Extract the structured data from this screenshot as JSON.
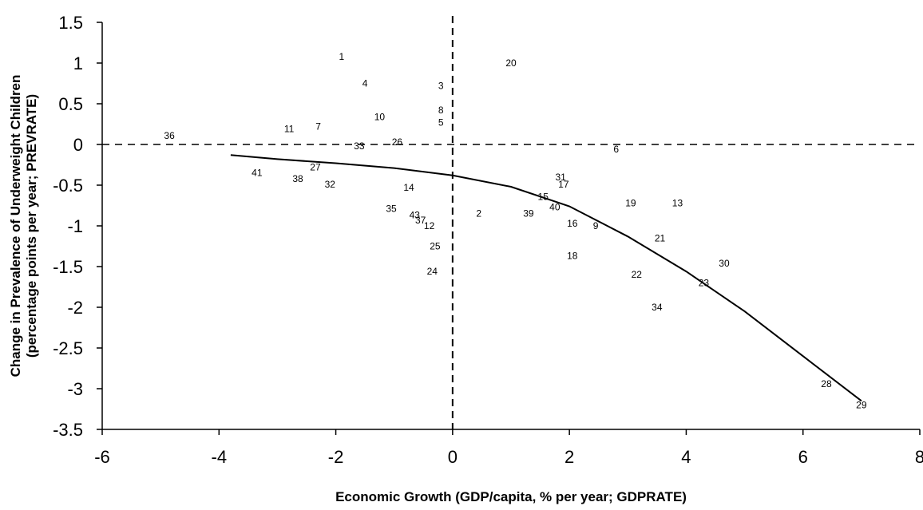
{
  "chart_data": {
    "type": "scatter",
    "title": "",
    "xlabel": "Economic Growth (GDP/capita, % per year; GDPRATE)",
    "ylabel": "Change in Prevalence of Underweight Children",
    "ylabel2": "(percentage points per year; PREVRATE)",
    "xlim": [
      -6,
      8
    ],
    "ylim": [
      -3.5,
      1.5
    ],
    "x_ticks": [
      -6,
      -4,
      -2,
      0,
      2,
      4,
      6,
      8
    ],
    "x_tick_labels": [
      "-6",
      "-4",
      "-2",
      "0",
      "2",
      "4",
      "6",
      "8"
    ],
    "y_ticks": [
      1.5,
      1,
      0.5,
      0,
      -0.5,
      -1,
      -1.5,
      -2,
      -2.5,
      -3,
      -3.5
    ],
    "y_tick_labels": [
      "1.5",
      "1",
      "0.5",
      "0",
      "-0.5",
      "-1",
      "-1.5",
      "-2",
      "-2.5",
      "-3",
      "-3.5"
    ],
    "grid": false,
    "reference_lines": {
      "x": 0,
      "y": 0,
      "style": "dashed"
    },
    "points": [
      {
        "label": "1",
        "x": -1.9,
        "y": 1.08
      },
      {
        "label": "4",
        "x": -1.5,
        "y": 0.75
      },
      {
        "label": "3",
        "x": -0.2,
        "y": 0.72
      },
      {
        "label": "20",
        "x": 1.0,
        "y": 1.0
      },
      {
        "label": "10",
        "x": -1.25,
        "y": 0.34
      },
      {
        "label": "8",
        "x": -0.2,
        "y": 0.42
      },
      {
        "label": "5",
        "x": -0.2,
        "y": 0.27
      },
      {
        "label": "11",
        "x": -2.8,
        "y": 0.19
      },
      {
        "label": "7",
        "x": -2.3,
        "y": 0.22
      },
      {
        "label": "36",
        "x": -4.85,
        "y": 0.11
      },
      {
        "label": "33",
        "x": -1.6,
        "y": -0.02
      },
      {
        "label": "26",
        "x": -0.95,
        "y": 0.03
      },
      {
        "label": "6",
        "x": 2.8,
        "y": -0.06
      },
      {
        "label": "41",
        "x": -3.35,
        "y": -0.35
      },
      {
        "label": "38",
        "x": -2.65,
        "y": -0.42
      },
      {
        "label": "27",
        "x": -2.35,
        "y": -0.28
      },
      {
        "label": "32",
        "x": -2.1,
        "y": -0.49
      },
      {
        "label": "14",
        "x": -0.75,
        "y": -0.53
      },
      {
        "label": "31",
        "x": 1.85,
        "y": -0.4
      },
      {
        "label": "17",
        "x": 1.9,
        "y": -0.49
      },
      {
        "label": "15",
        "x": 1.55,
        "y": -0.64
      },
      {
        "label": "40",
        "x": 1.75,
        "y": -0.77
      },
      {
        "label": "19",
        "x": 3.05,
        "y": -0.72
      },
      {
        "label": "13",
        "x": 3.85,
        "y": -0.72
      },
      {
        "label": "35",
        "x": -1.05,
        "y": -0.79
      },
      {
        "label": "43",
        "x": -0.65,
        "y": -0.87
      },
      {
        "label": "37",
        "x": -0.55,
        "y": -0.93
      },
      {
        "label": "12",
        "x": -0.4,
        "y": -1.0
      },
      {
        "label": "2",
        "x": 0.45,
        "y": -0.85
      },
      {
        "label": "39",
        "x": 1.3,
        "y": -0.85
      },
      {
        "label": "16",
        "x": 2.05,
        "y": -0.97
      },
      {
        "label": "9",
        "x": 2.45,
        "y": -1.0
      },
      {
        "label": "21",
        "x": 3.55,
        "y": -1.15
      },
      {
        "label": "25",
        "x": -0.3,
        "y": -1.25
      },
      {
        "label": "18",
        "x": 2.05,
        "y": -1.37
      },
      {
        "label": "30",
        "x": 4.65,
        "y": -1.46
      },
      {
        "label": "24",
        "x": -0.35,
        "y": -1.56
      },
      {
        "label": "22",
        "x": 3.15,
        "y": -1.6
      },
      {
        "label": "23",
        "x": 4.3,
        "y": -1.7
      },
      {
        "label": "34",
        "x": 3.5,
        "y": -2.0
      },
      {
        "label": "28",
        "x": 6.4,
        "y": -2.94
      },
      {
        "label": "29",
        "x": 7.0,
        "y": -3.2
      }
    ],
    "fitted_curve": {
      "x": [
        -3.8,
        -3.0,
        -2.0,
        -1.0,
        0.0,
        1.0,
        2.0,
        3.0,
        4.0,
        5.0,
        6.0,
        7.0
      ],
      "y": [
        -0.13,
        -0.18,
        -0.23,
        -0.29,
        -0.38,
        -0.52,
        -0.76,
        -1.13,
        -1.56,
        -2.05,
        -2.6,
        -3.15
      ]
    }
  }
}
